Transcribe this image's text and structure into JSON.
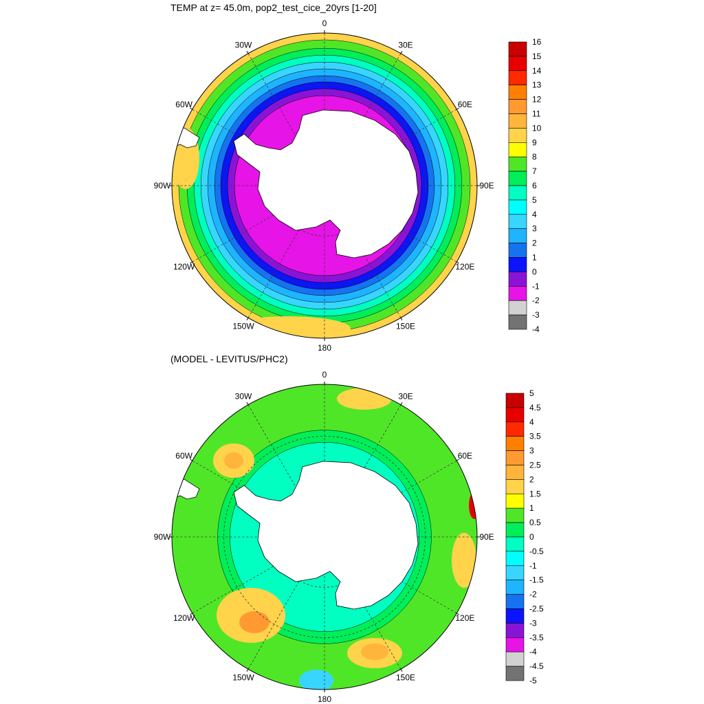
{
  "panels": [
    {
      "title": "TEMP at z=  45.0m, pop2_test_cice_20yrs [1-20]",
      "lon_labels": [
        "0",
        "30E",
        "60E",
        "90E",
        "120E",
        "150E",
        "180",
        "150W",
        "120W",
        "90W",
        "60W",
        "30W"
      ],
      "colorbar": {
        "levels": [
          "16",
          "15",
          "14",
          "13",
          "12",
          "11",
          "10",
          "9",
          "8",
          "7",
          "6",
          "5",
          "4",
          "3",
          "2",
          "1",
          "0",
          "-1",
          "-2",
          "-3",
          "-4"
        ],
        "colors": [
          "#c80000",
          "#e80000",
          "#ff2a00",
          "#ff8000",
          "#ff9a33",
          "#ffb43c",
          "#ffd34a",
          "#ffff00",
          "#50e628",
          "#00ee5a",
          "#00ffc0",
          "#00ffff",
          "#38d6ff",
          "#1eb4ff",
          "#1673f0",
          "#0a14ff",
          "#8a14d6",
          "#e614e6",
          "#d2d2d2",
          "#737373"
        ]
      },
      "rings": [
        {
          "color": "#ffd34a",
          "outer": 1.0,
          "inner": 0.955
        },
        {
          "color": "#50e628",
          "outer": 0.955,
          "inner": 0.9
        },
        {
          "color": "#00ee5a",
          "outer": 0.9,
          "inner": 0.855
        },
        {
          "color": "#00ffc0",
          "outer": 0.855,
          "inner": 0.81
        },
        {
          "color": "#38d6ff",
          "outer": 0.81,
          "inner": 0.765
        },
        {
          "color": "#1eb4ff",
          "outer": 0.765,
          "inner": 0.72
        },
        {
          "color": "#1673f0",
          "outer": 0.72,
          "inner": 0.68
        },
        {
          "color": "#0a14ff",
          "outer": 0.68,
          "inner": 0.635
        },
        {
          "color": "#8a14d6",
          "outer": 0.635,
          "inner": 0.59
        },
        {
          "color": "#e614e6",
          "outer": 0.59,
          "inner": 0.3
        }
      ]
    },
    {
      "title": "(MODEL - LEVITUS/PHC2)",
      "lon_labels": [
        "0",
        "30E",
        "60E",
        "90E",
        "120E",
        "150E",
        "180",
        "150W",
        "120W",
        "90W",
        "60W",
        "30W"
      ],
      "colorbar": {
        "levels": [
          "5",
          "4.5",
          "4",
          "3.5",
          "3",
          "2.5",
          "2",
          "1.5",
          "1",
          "0.5",
          "0",
          "-0.5",
          "-1",
          "-1.5",
          "-2",
          "-2.5",
          "-3",
          "-3.5",
          "-4",
          "-4.5",
          "-5"
        ],
        "colors": [
          "#c80000",
          "#e80000",
          "#ff2a00",
          "#ff8000",
          "#ff9a33",
          "#ffb43c",
          "#ffd34a",
          "#ffff00",
          "#50e628",
          "#00ee5a",
          "#00ffc0",
          "#00ffff",
          "#38d6ff",
          "#1eb4ff",
          "#1673f0",
          "#0a14ff",
          "#8a14d6",
          "#e614e6",
          "#d2d2d2",
          "#737373"
        ]
      },
      "rings": [
        {
          "color": "#50e628",
          "outer": 1.0,
          "inner": 0.7
        },
        {
          "color": "#00ee5a",
          "outer": 0.7,
          "inner": 0.62
        },
        {
          "color": "#00ffc0",
          "outer": 0.62,
          "inner": 0.3
        }
      ]
    }
  ]
}
